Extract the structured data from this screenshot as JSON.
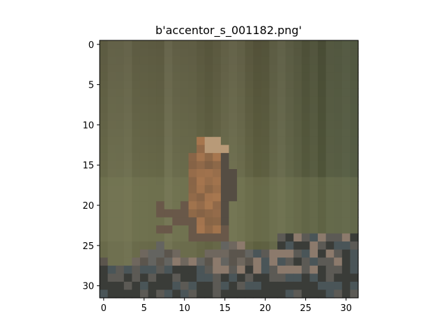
{
  "figure": {
    "title": "b'accentor_s_001182.png'"
  },
  "image": {
    "grid_width": 32,
    "grid_height": 32,
    "description_subject": "small brown bird perched on rocks against a blurred green background"
  },
  "axes": {
    "x_ticks": [
      "0",
      "5",
      "10",
      "15",
      "20",
      "25",
      "30"
    ],
    "y_ticks": [
      "0",
      "5",
      "10",
      "15",
      "20",
      "25",
      "30"
    ]
  },
  "colors": {
    "bg_top": "#5f5d44",
    "bg_mid": "#6b6c4c",
    "bg_green_light": "#7a7d58",
    "bg_dark_right": "#3f4a35",
    "bird_orange": "#a8774f",
    "bird_dark": "#5a4a3a",
    "bird_head": "#b89a78",
    "rock_light": "#8c7a6c",
    "rock_dark": "#3a3c38",
    "rock_mid": "#5c5a55",
    "rock_blue": "#4a5558"
  }
}
